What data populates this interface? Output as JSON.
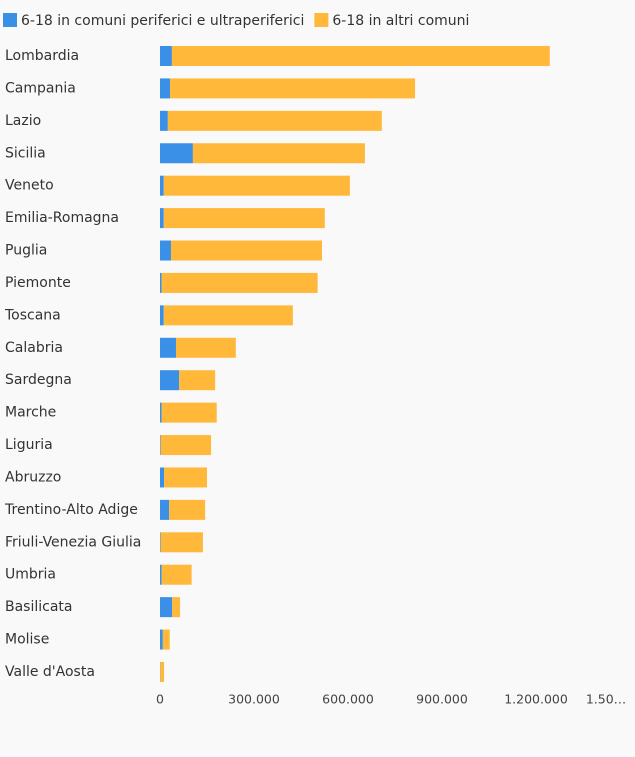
{
  "chart_data": {
    "type": "stacked-barh",
    "categories": [
      "Lombardia",
      "Campania",
      "Lazio",
      "Sicilia",
      "Veneto",
      "Emilia-Romagna",
      "Puglia",
      "Piemonte",
      "Toscana",
      "Calabria",
      "Sardegna",
      "Marche",
      "Liguria",
      "Abruzzo",
      "Trentino-Alto Adige",
      "Friuli-Venezia Giulia",
      "Umbria",
      "Basilicata",
      "Molise",
      "Valle d'Aosta"
    ],
    "series": [
      {
        "name": "6-18 in comuni periferici e ultraperiferici",
        "color": "#3a8fe6",
        "values": [
          38000,
          32000,
          25000,
          105000,
          12000,
          12000,
          35000,
          5000,
          12000,
          51000,
          61000,
          5000,
          2000,
          13000,
          29000,
          2000,
          5000,
          39000,
          9000,
          1000
        ]
      },
      {
        "name": "6-18 in altri comuni",
        "color": "#ffb83a",
        "values": [
          1206000,
          782000,
          683000,
          549000,
          594000,
          514000,
          482000,
          498000,
          412000,
          191000,
          115000,
          176000,
          161000,
          137000,
          115000,
          135000,
          96000,
          25000,
          22000,
          12000
        ]
      }
    ],
    "xlim": [
      0,
      1500000
    ],
    "xticks": [
      0,
      {
        "value": 300000,
        "label": "300.000"
      },
      {
        "value": 600000,
        "label": "600.000"
      },
      {
        "value": 900000,
        "label": "900.000"
      },
      {
        "value": 1200000,
        "label": "1.200.000"
      },
      {
        "value": 1500000,
        "label": "1.50…"
      }
    ],
    "legend": "top-left"
  }
}
